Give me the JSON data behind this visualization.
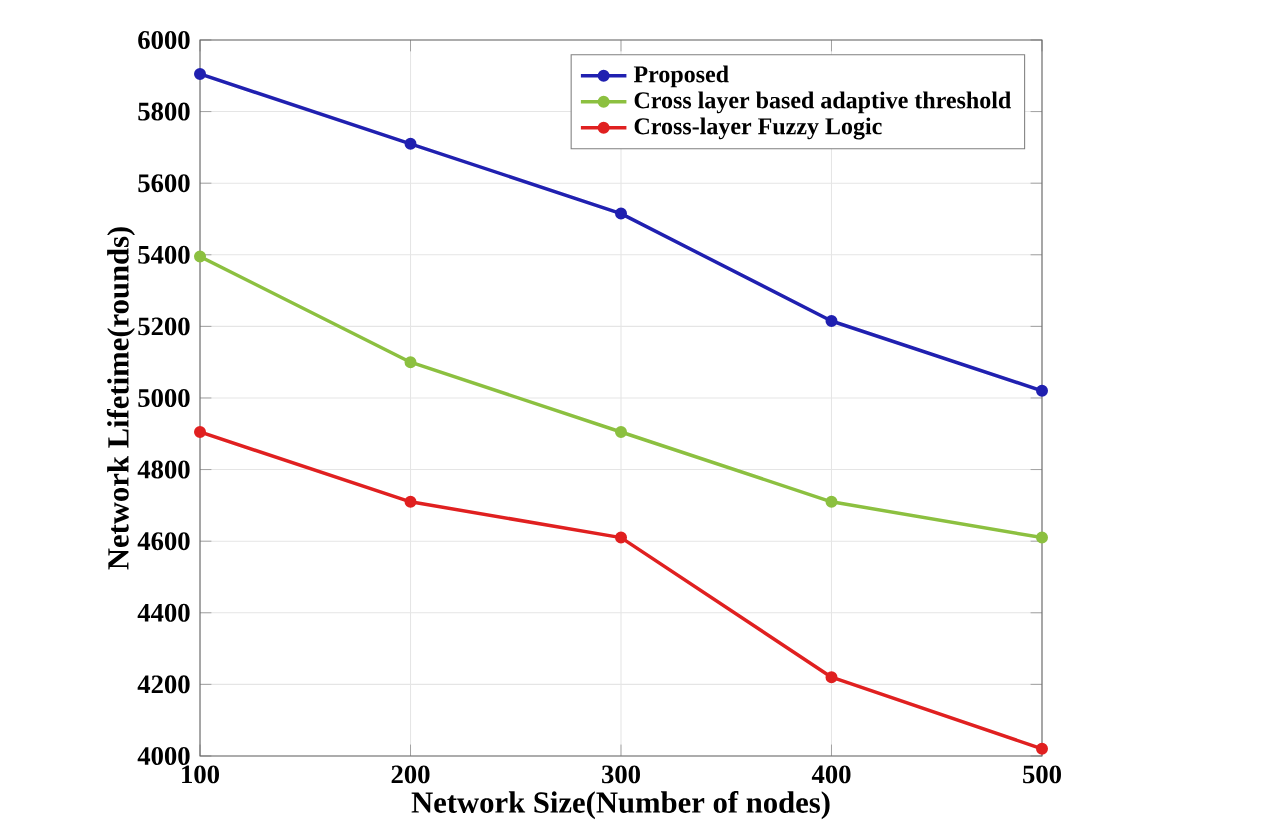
{
  "chart_data": {
    "type": "line",
    "xlabel": "Network Size(Number of nodes)",
    "ylabel": "Network Lifetime(rounds)",
    "x": [
      100,
      200,
      300,
      400,
      500
    ],
    "series": [
      {
        "name": "Proposed",
        "color": "#2020b0",
        "values": [
          5905,
          5710,
          5515,
          5215,
          5020
        ]
      },
      {
        "name": "Cross layer based adaptive threshold",
        "color": "#8cc040",
        "values": [
          5395,
          5100,
          4905,
          4710,
          4610
        ]
      },
      {
        "name": "Cross-layer Fuzzy Logic",
        "color": "#e02020",
        "values": [
          4905,
          4710,
          4610,
          4220,
          4020
        ]
      }
    ],
    "xlim": [
      100,
      500
    ],
    "xticks": [
      100,
      200,
      300,
      400,
      500
    ],
    "ylim": [
      4000,
      6000
    ],
    "yticks": [
      4000,
      4200,
      4400,
      4600,
      4800,
      5000,
      5200,
      5400,
      5600,
      5800,
      6000
    ],
    "grid": true,
    "legend": "top right",
    "marker": "circle",
    "line_style": "solid"
  }
}
